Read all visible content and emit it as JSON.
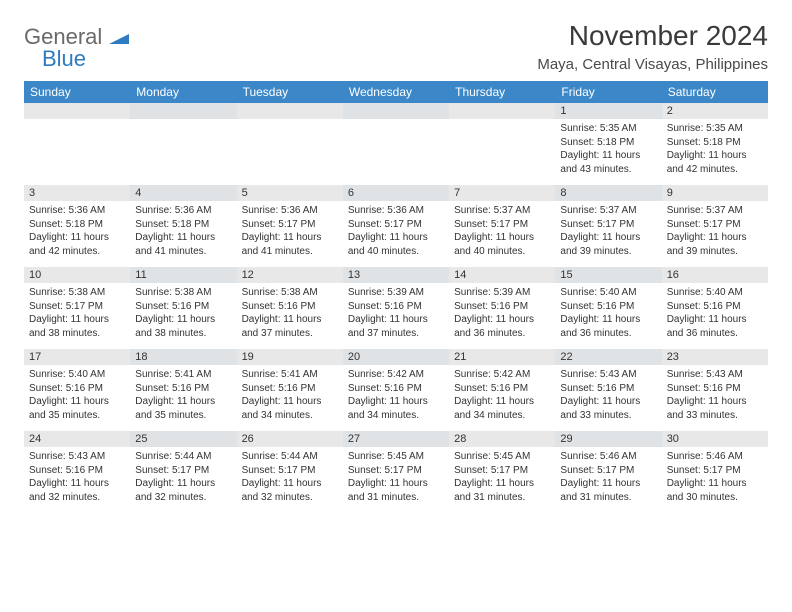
{
  "logo": {
    "word1": "General",
    "word2": "Blue"
  },
  "title": "November 2024",
  "subtitle": "Maya, Central Visayas, Philippines",
  "weekdays": [
    "Sunday",
    "Monday",
    "Tuesday",
    "Wednesday",
    "Thursday",
    "Friday",
    "Saturday"
  ],
  "colors": {
    "header_bg": "#3b87c8",
    "header_text": "#ffffff",
    "daynum_bg": "#e8e8e8",
    "daynum_bg_alt": "#e0e3e6",
    "body_text": "#333333",
    "logo_gray": "#6a6a6a",
    "logo_blue": "#2f7bbf"
  },
  "first_weekday_index": 5,
  "days": [
    {
      "n": 1,
      "sunrise": "5:35 AM",
      "sunset": "5:18 PM",
      "daylight": "11 hours and 43 minutes."
    },
    {
      "n": 2,
      "sunrise": "5:35 AM",
      "sunset": "5:18 PM",
      "daylight": "11 hours and 42 minutes."
    },
    {
      "n": 3,
      "sunrise": "5:36 AM",
      "sunset": "5:18 PM",
      "daylight": "11 hours and 42 minutes."
    },
    {
      "n": 4,
      "sunrise": "5:36 AM",
      "sunset": "5:18 PM",
      "daylight": "11 hours and 41 minutes."
    },
    {
      "n": 5,
      "sunrise": "5:36 AM",
      "sunset": "5:17 PM",
      "daylight": "11 hours and 41 minutes."
    },
    {
      "n": 6,
      "sunrise": "5:36 AM",
      "sunset": "5:17 PM",
      "daylight": "11 hours and 40 minutes."
    },
    {
      "n": 7,
      "sunrise": "5:37 AM",
      "sunset": "5:17 PM",
      "daylight": "11 hours and 40 minutes."
    },
    {
      "n": 8,
      "sunrise": "5:37 AM",
      "sunset": "5:17 PM",
      "daylight": "11 hours and 39 minutes."
    },
    {
      "n": 9,
      "sunrise": "5:37 AM",
      "sunset": "5:17 PM",
      "daylight": "11 hours and 39 minutes."
    },
    {
      "n": 10,
      "sunrise": "5:38 AM",
      "sunset": "5:17 PM",
      "daylight": "11 hours and 38 minutes."
    },
    {
      "n": 11,
      "sunrise": "5:38 AM",
      "sunset": "5:16 PM",
      "daylight": "11 hours and 38 minutes."
    },
    {
      "n": 12,
      "sunrise": "5:38 AM",
      "sunset": "5:16 PM",
      "daylight": "11 hours and 37 minutes."
    },
    {
      "n": 13,
      "sunrise": "5:39 AM",
      "sunset": "5:16 PM",
      "daylight": "11 hours and 37 minutes."
    },
    {
      "n": 14,
      "sunrise": "5:39 AM",
      "sunset": "5:16 PM",
      "daylight": "11 hours and 36 minutes."
    },
    {
      "n": 15,
      "sunrise": "5:40 AM",
      "sunset": "5:16 PM",
      "daylight": "11 hours and 36 minutes."
    },
    {
      "n": 16,
      "sunrise": "5:40 AM",
      "sunset": "5:16 PM",
      "daylight": "11 hours and 36 minutes."
    },
    {
      "n": 17,
      "sunrise": "5:40 AM",
      "sunset": "5:16 PM",
      "daylight": "11 hours and 35 minutes."
    },
    {
      "n": 18,
      "sunrise": "5:41 AM",
      "sunset": "5:16 PM",
      "daylight": "11 hours and 35 minutes."
    },
    {
      "n": 19,
      "sunrise": "5:41 AM",
      "sunset": "5:16 PM",
      "daylight": "11 hours and 34 minutes."
    },
    {
      "n": 20,
      "sunrise": "5:42 AM",
      "sunset": "5:16 PM",
      "daylight": "11 hours and 34 minutes."
    },
    {
      "n": 21,
      "sunrise": "5:42 AM",
      "sunset": "5:16 PM",
      "daylight": "11 hours and 34 minutes."
    },
    {
      "n": 22,
      "sunrise": "5:43 AM",
      "sunset": "5:16 PM",
      "daylight": "11 hours and 33 minutes."
    },
    {
      "n": 23,
      "sunrise": "5:43 AM",
      "sunset": "5:16 PM",
      "daylight": "11 hours and 33 minutes."
    },
    {
      "n": 24,
      "sunrise": "5:43 AM",
      "sunset": "5:16 PM",
      "daylight": "11 hours and 32 minutes."
    },
    {
      "n": 25,
      "sunrise": "5:44 AM",
      "sunset": "5:17 PM",
      "daylight": "11 hours and 32 minutes."
    },
    {
      "n": 26,
      "sunrise": "5:44 AM",
      "sunset": "5:17 PM",
      "daylight": "11 hours and 32 minutes."
    },
    {
      "n": 27,
      "sunrise": "5:45 AM",
      "sunset": "5:17 PM",
      "daylight": "11 hours and 31 minutes."
    },
    {
      "n": 28,
      "sunrise": "5:45 AM",
      "sunset": "5:17 PM",
      "daylight": "11 hours and 31 minutes."
    },
    {
      "n": 29,
      "sunrise": "5:46 AM",
      "sunset": "5:17 PM",
      "daylight": "11 hours and 31 minutes."
    },
    {
      "n": 30,
      "sunrise": "5:46 AM",
      "sunset": "5:17 PM",
      "daylight": "11 hours and 30 minutes."
    }
  ],
  "labels": {
    "sunrise_prefix": "Sunrise: ",
    "sunset_prefix": "Sunset: ",
    "daylight_prefix": "Daylight: "
  }
}
